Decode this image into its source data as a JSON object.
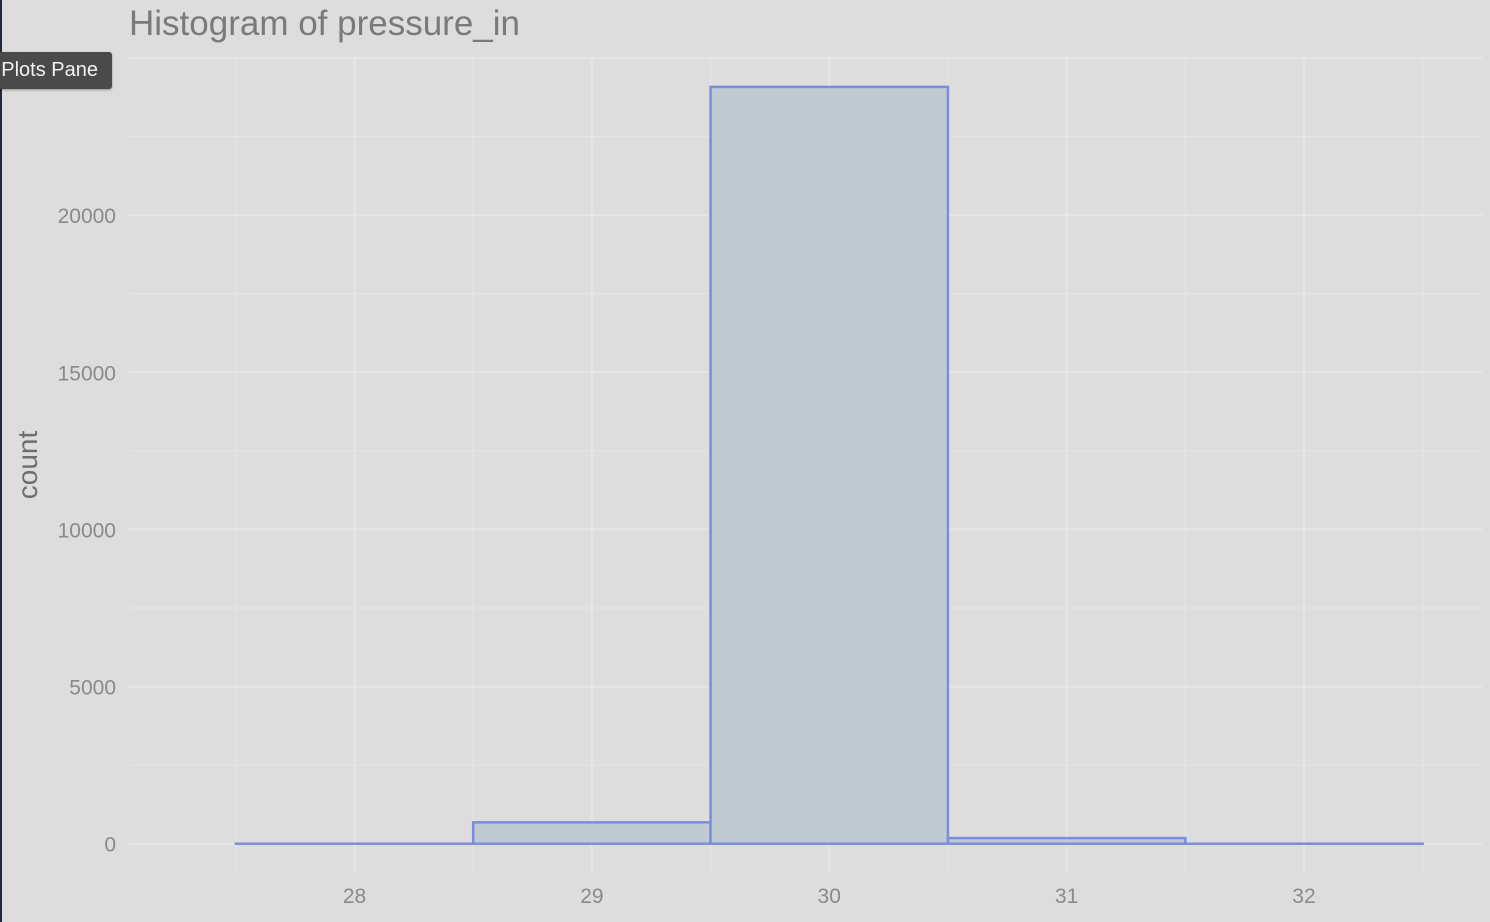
{
  "tooltip": {
    "text": "Plots Pane"
  },
  "chart_data": {
    "type": "bar",
    "title": "Histogram of pressure_in",
    "xlabel": "",
    "ylabel": "count",
    "bins": [
      {
        "x0": 27.5,
        "x1": 28.5,
        "count": 0
      },
      {
        "x0": 28.5,
        "x1": 29.5,
        "count": 680
      },
      {
        "x0": 29.5,
        "x1": 30.5,
        "count": 24080
      },
      {
        "x0": 30.5,
        "x1": 31.5,
        "count": 180
      },
      {
        "x0": 31.5,
        "x1": 32.5,
        "count": 0
      }
    ],
    "xlim": [
      27.05,
      32.75
    ],
    "ylim": [
      -900,
      25000
    ],
    "xticks": [
      28,
      29,
      30,
      31,
      32
    ],
    "yticks": [
      0,
      5000,
      10000,
      15000,
      20000
    ],
    "grid": true,
    "colors": {
      "fill": "#bfcad1",
      "stroke": "#7b8ddd",
      "grid": "#e6e6e6",
      "background": "#dddddd"
    }
  }
}
